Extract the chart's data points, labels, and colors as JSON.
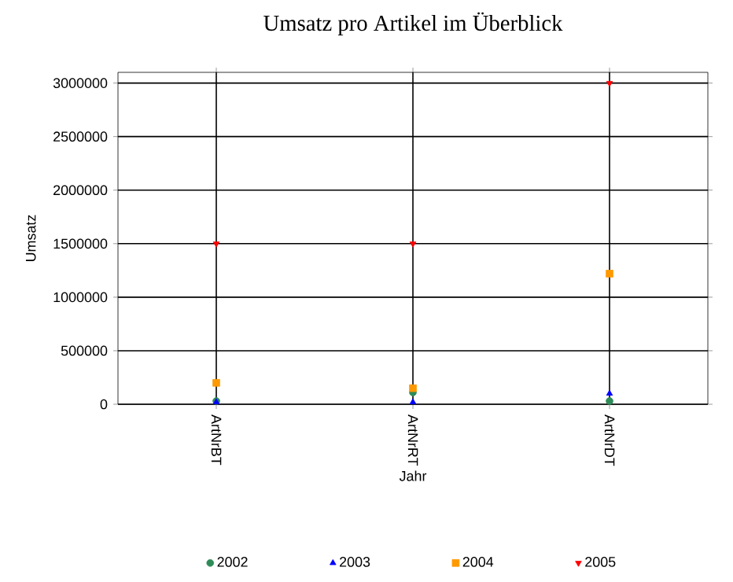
{
  "chart_data": {
    "type": "scatter",
    "title": "Umsatz pro Artikel im Überblick",
    "xlabel": "Jahr",
    "ylabel": "Umsatz",
    "categories": [
      "ArtNrBT",
      "ArtNrRT",
      "ArtNrDT"
    ],
    "ylim": [
      0,
      3100000
    ],
    "yticks": [
      0,
      500000,
      1000000,
      1500000,
      2000000,
      2500000,
      3000000
    ],
    "grid": true,
    "legend": "bottom",
    "series": [
      {
        "name": "2002",
        "color": "#2e8b57",
        "marker": "circle",
        "values": [
          30000,
          110000,
          30000
        ]
      },
      {
        "name": "2003",
        "color": "#0000ff",
        "marker": "triangle",
        "values": [
          20000,
          20000,
          100000
        ]
      },
      {
        "name": "2004",
        "color": "#ff9900",
        "marker": "square",
        "values": [
          200000,
          150000,
          1220000
        ]
      },
      {
        "name": "2005",
        "color": "#ff0000",
        "marker": "triangle-down",
        "values": [
          1500000,
          1500000,
          3000000
        ]
      }
    ]
  }
}
